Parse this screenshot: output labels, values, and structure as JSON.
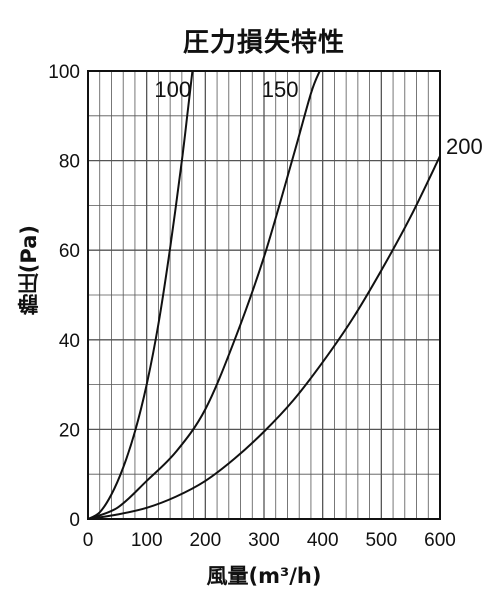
{
  "chart_data": {
    "type": "line",
    "title": "圧力損失特性",
    "xlabel": "風量(m³/h)",
    "ylabel": "静圧(Pa)",
    "xlim": [
      0,
      600
    ],
    "ylim": [
      0,
      100
    ],
    "xticks": [
      0,
      100,
      200,
      300,
      400,
      500,
      600
    ],
    "yticks": [
      0,
      20,
      40,
      60,
      80,
      100
    ],
    "grid": true,
    "series": [
      {
        "name": "100",
        "x": [
          0,
          20,
          40,
          60,
          80,
          100,
          120,
          140,
          160,
          170,
          178
        ],
        "y": [
          0,
          1.5,
          5.5,
          11.5,
          19.5,
          30,
          43.5,
          60.5,
          80,
          91,
          100
        ]
      },
      {
        "name": "150",
        "x": [
          0,
          50,
          100,
          150,
          200,
          250,
          300,
          350,
          380,
          395
        ],
        "y": [
          0,
          2.5,
          8.5,
          15,
          24.5,
          40,
          58.5,
          81,
          95,
          100
        ]
      },
      {
        "name": "200",
        "x": [
          0,
          50,
          100,
          150,
          200,
          250,
          300,
          350,
          400,
          450,
          500,
          550,
          600
        ],
        "y": [
          0,
          1,
          2.5,
          5,
          8.5,
          13.5,
          19.5,
          26.5,
          35,
          44.5,
          55.5,
          67.5,
          81
        ]
      }
    ]
  }
}
